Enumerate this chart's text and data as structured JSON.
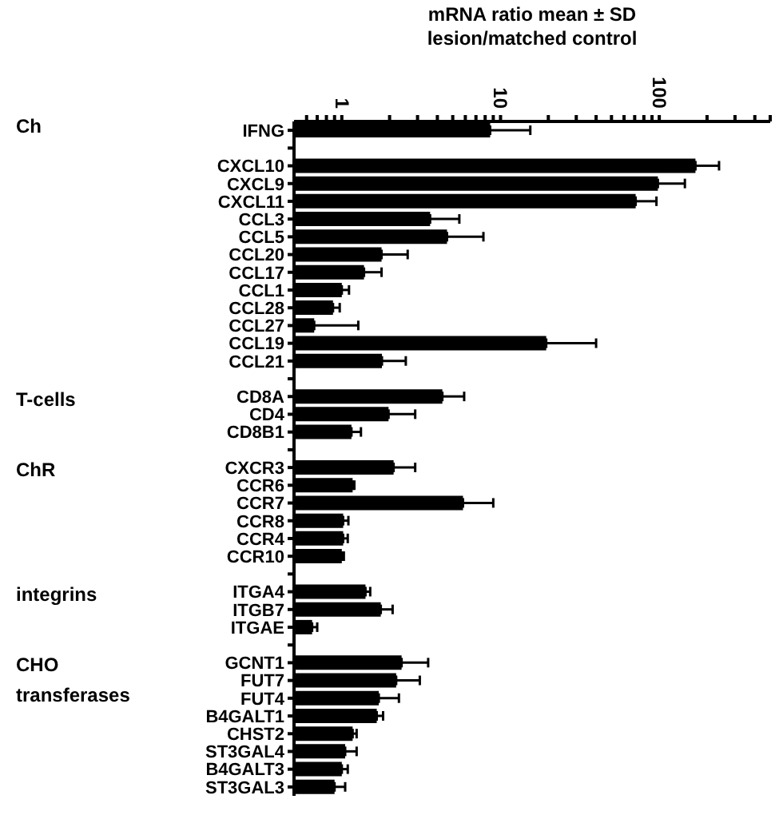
{
  "chart_data": {
    "type": "bar",
    "orientation": "horizontal",
    "log": "x",
    "xlabel": "mRNA ratio mean ± SD\nlesion/matched control",
    "categories": [
      "IFNG",
      null,
      "CXCL10",
      "CXCL9",
      "CXCL11",
      "CCL3",
      "CCL5",
      "CCL20",
      "CCL17",
      "CCL1",
      "CCL28",
      "CCL27",
      "CCL19",
      "CCL21",
      null,
      "CD8A",
      "CD4",
      "CD8B1",
      null,
      "CXCR3",
      "CCR6",
      "CCR7",
      "CCR8",
      "CCR4",
      "CCR10",
      null,
      "ITGA4",
      "ITGB7",
      "ITGAE",
      null,
      "GCNT1",
      "FUT7",
      "FUT4",
      "B4GALT1",
      "CHST2",
      "ST3GAL4",
      "B4GALT3",
      "ST3GAL3"
    ],
    "series": [
      {
        "color": "#000000",
        "values": [
          8.6,
          null,
          169,
          98,
          71,
          3.6,
          4.6,
          1.78,
          1.38,
          1.0,
          0.88,
          0.67,
          19.4,
          1.79,
          null,
          4.3,
          1.97,
          1.15,
          null,
          2.12,
          1.17,
          5.8,
          1.02,
          1.02,
          1.0,
          null,
          1.41,
          1.76,
          0.65,
          null,
          2.38,
          2.2,
          1.71,
          1.66,
          1.17,
          1.05,
          1.0,
          0.9
        ],
        "errors": [
          [
            8.6,
            15.4
          ],
          null,
          [
            169,
            238
          ],
          [
            98,
            145
          ],
          [
            71,
            96
          ],
          [
            3.6,
            5.5
          ],
          [
            4.6,
            7.8
          ],
          [
            1.78,
            2.6
          ],
          [
            1.38,
            1.78
          ],
          [
            1.0,
            1.11
          ],
          [
            0.88,
            0.97
          ],
          [
            0.67,
            1.27
          ],
          [
            19.4,
            40
          ],
          [
            1.79,
            2.53
          ],
          null,
          [
            4.3,
            5.9
          ],
          [
            1.97,
            2.9
          ],
          [
            1.15,
            1.32
          ],
          null,
          [
            2.12,
            2.9
          ],
          [
            1.17,
            1.2
          ],
          [
            5.8,
            9.0
          ],
          [
            1.02,
            1.1
          ],
          [
            1.02,
            1.09
          ],
          [
            1.0,
            1.03
          ],
          null,
          [
            1.41,
            1.51
          ],
          [
            1.76,
            2.09
          ],
          [
            0.65,
            0.7
          ],
          null,
          [
            2.38,
            3.5
          ],
          [
            2.2,
            3.1
          ],
          [
            1.71,
            2.29
          ],
          [
            1.66,
            1.82
          ],
          [
            1.17,
            1.24
          ],
          [
            1.05,
            1.24
          ],
          [
            1.0,
            1.09
          ],
          [
            0.9,
            1.05
          ]
        ]
      }
    ],
    "xlim": [
      0.5,
      500
    ],
    "xticks": [
      {
        "value": 0.6,
        "label": null
      },
      {
        "value": 0.7,
        "label": null
      },
      {
        "value": 0.8,
        "label": null
      },
      {
        "value": 0.9,
        "label": null
      },
      1,
      {
        "value": 2,
        "label": null
      },
      {
        "value": 3,
        "label": null
      },
      {
        "value": 4,
        "label": null
      },
      {
        "value": 5,
        "label": null
      },
      {
        "value": 6,
        "label": null
      },
      {
        "value": 7,
        "label": null
      },
      {
        "value": 8,
        "label": null
      },
      {
        "value": 9,
        "label": null
      },
      10,
      {
        "value": 20,
        "label": null
      },
      {
        "value": 30,
        "label": null
      },
      {
        "value": 40,
        "label": null
      },
      {
        "value": 50,
        "label": null
      },
      {
        "value": 60,
        "label": null
      },
      {
        "value": 70,
        "label": null
      },
      {
        "value": 80,
        "label": null
      },
      {
        "value": 90,
        "label": null
      },
      100,
      {
        "value": 200,
        "label": null
      },
      {
        "value": 300,
        "label": null
      },
      {
        "value": 400,
        "label": null
      },
      {
        "value": 500,
        "label": null
      }
    ],
    "annotations": [
      "Ch",
      "T-cells",
      "ChR",
      "integrins",
      "CHO transferases"
    ]
  }
}
